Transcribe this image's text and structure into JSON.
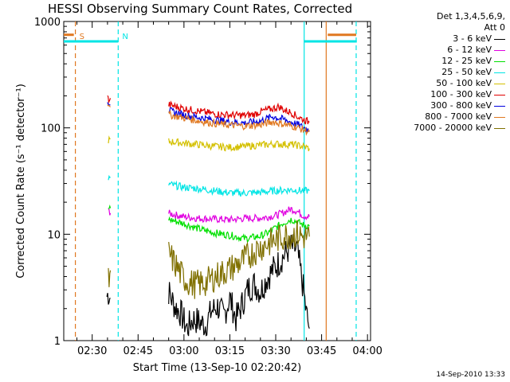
{
  "title": "HESSI Observing Summary Count Rates, Corrected",
  "legend": {
    "header_line1": "Det 1,3,4,5,6,9,",
    "header_line2": "Att 0"
  },
  "stamp": "14-Sep-2010 13:33",
  "chart_data": {
    "type": "line",
    "xlabel": "Start Time (13-Sep-10 02:20:42)",
    "ylabel": "Corrected Count Rate (s⁻¹ detector⁻¹)",
    "x_ticks": [
      "02:30",
      "02:45",
      "03:00",
      "03:15",
      "03:30",
      "03:45",
      "04:00"
    ],
    "x_tick_minutes": [
      150,
      165,
      180,
      195,
      210,
      225,
      240
    ],
    "xlim_minutes": [
      140.7,
      241
    ],
    "yscale": "log",
    "ylim": [
      1,
      1000
    ],
    "y_ticks": [
      "1",
      "10",
      "100",
      "1000"
    ],
    "y_tick_values": [
      1,
      10,
      100,
      1000
    ],
    "markers": [
      {
        "label": "S",
        "minute": 144.5,
        "color": "#e07820",
        "style": "dashed"
      },
      {
        "label": "N",
        "minute": 158.5,
        "color": "#00e5e5",
        "style": "dashed"
      },
      {
        "label": "",
        "minute": 219.3,
        "color": "#00e5e5",
        "style": "solid"
      },
      {
        "label": "",
        "minute": 226.5,
        "color": "#e07820",
        "style": "solid"
      },
      {
        "label": "",
        "minute": 236.3,
        "color": "#00e5e5",
        "style": "dashed"
      }
    ],
    "flags": [
      {
        "color": "#e07820",
        "y": 750,
        "from": 140.7,
        "to": 144,
        "width": 3
      },
      {
        "color": "#00e5e5",
        "y": 650,
        "from": 140.7,
        "to": 158.5,
        "width": 3
      },
      {
        "color": "#00e5e5",
        "y": 650,
        "from": 219.3,
        "to": 236.5,
        "width": 3
      },
      {
        "color": "#e07820",
        "y": 750,
        "from": 227,
        "to": 236.3,
        "width": 3
      }
    ],
    "series": [
      {
        "name": "3 - 6 keV",
        "color": "#000000",
        "x": [
          154.8,
          155.3,
          156.2,
          175,
          177,
          179,
          181,
          183,
          185,
          187,
          189,
          191,
          193,
          195,
          197,
          199,
          201,
          203,
          205,
          207,
          209,
          211,
          213,
          215,
          217,
          219,
          220,
          221
        ],
        "y": [
          2.6,
          2.8,
          2.4,
          2.9,
          2.1,
          1.8,
          1.3,
          1.6,
          1.5,
          1.4,
          1.9,
          2.1,
          1.7,
          2.5,
          1.6,
          2.2,
          3.1,
          3.4,
          2.9,
          3.8,
          4.6,
          5.4,
          6.5,
          7.6,
          7.1,
          3.1,
          1.8,
          1.3
        ]
      },
      {
        "name": "6 - 12 keV",
        "color": "#e000e0",
        "x": [
          155.3,
          156.2,
          175,
          180,
          185,
          190,
          195,
          200,
          205,
          210,
          213,
          215,
          217,
          219,
          221
        ],
        "y": [
          16.5,
          16,
          15.7,
          14.6,
          14.1,
          13.9,
          13.7,
          14.1,
          14.2,
          15,
          16.2,
          17.3,
          16.5,
          15,
          14.6
        ]
      },
      {
        "name": "12 - 25 keV",
        "color": "#00e000",
        "x": [
          155.3,
          156.2,
          175,
          180,
          185,
          190,
          195,
          200,
          205,
          208,
          210,
          213,
          215,
          217,
          219,
          221
        ],
        "y": [
          17.5,
          17,
          13.8,
          12.6,
          11.2,
          10.3,
          9.8,
          9.1,
          9.6,
          10.5,
          11.6,
          13,
          13.8,
          13.1,
          12.2,
          11.9
        ]
      },
      {
        "name": "25 - 50 keV",
        "color": "#00e5e5",
        "x": [
          155.3,
          156.2,
          175,
          180,
          185,
          190,
          195,
          200,
          205,
          210,
          215,
          219,
          221
        ],
        "y": [
          34,
          32,
          29.5,
          27.6,
          26.8,
          25.6,
          24.5,
          24.4,
          24.8,
          25.7,
          26.2,
          25.6,
          25.6
        ]
      },
      {
        "name": "50 - 100 keV",
        "color": "#d4c000",
        "x": [
          155.3,
          156.2,
          175,
          180,
          185,
          190,
          195,
          200,
          205,
          210,
          215,
          219,
          221
        ],
        "y": [
          77,
          76,
          74.5,
          72,
          69.5,
          67,
          65.5,
          67,
          69,
          70.5,
          70,
          67,
          64
        ]
      },
      {
        "name": "100 - 300 keV",
        "color": "#e00000",
        "x": [
          155,
          155.4,
          156.2,
          175,
          180,
          185,
          190,
          195,
          200,
          203,
          205,
          207,
          209,
          211,
          213,
          215,
          217,
          219,
          221
        ],
        "y": [
          192,
          185,
          180,
          165,
          152,
          143,
          135,
          132,
          131,
          134,
          142,
          147,
          152,
          158,
          146,
          140,
          128,
          120,
          113
        ]
      },
      {
        "name": "300 - 800 keV",
        "color": "#0000e0",
        "x": [
          155,
          155.4,
          156.2,
          175,
          180,
          185,
          190,
          195,
          200,
          205,
          209,
          213,
          217,
          219,
          221
        ],
        "y": [
          183,
          175,
          172,
          145,
          132,
          125,
          119,
          114,
          111,
          116,
          128,
          119,
          108,
          101,
          95
        ]
      },
      {
        "name": "800 - 7000 keV",
        "color": "#e07820",
        "x": [
          155,
          155.4,
          156.2,
          175,
          180,
          185,
          190,
          195,
          200,
          205,
          209,
          213,
          217,
          219,
          221
        ],
        "y": [
          174,
          168,
          166,
          133,
          124,
          116,
          110,
          106,
          104,
          107,
          114,
          108,
          101,
          96,
          92
        ]
      },
      {
        "name": "7000 - 20000 keV",
        "color": "#807000",
        "x": [
          155.3,
          156.2,
          175,
          177,
          179,
          181,
          183,
          185,
          187,
          189,
          191,
          193,
          195,
          197,
          199,
          201,
          203,
          205,
          207,
          209,
          211,
          213,
          215,
          217,
          219,
          221
        ],
        "y": [
          3.6,
          3.6,
          6.6,
          5.3,
          4.2,
          3.6,
          3.4,
          3.4,
          3.5,
          3.8,
          4.1,
          4.4,
          4.7,
          5.1,
          5.6,
          6.2,
          6.9,
          7.5,
          8.1,
          8.6,
          9.1,
          9.7,
          9.9,
          10.1,
          9.4,
          9.5
        ]
      }
    ]
  }
}
